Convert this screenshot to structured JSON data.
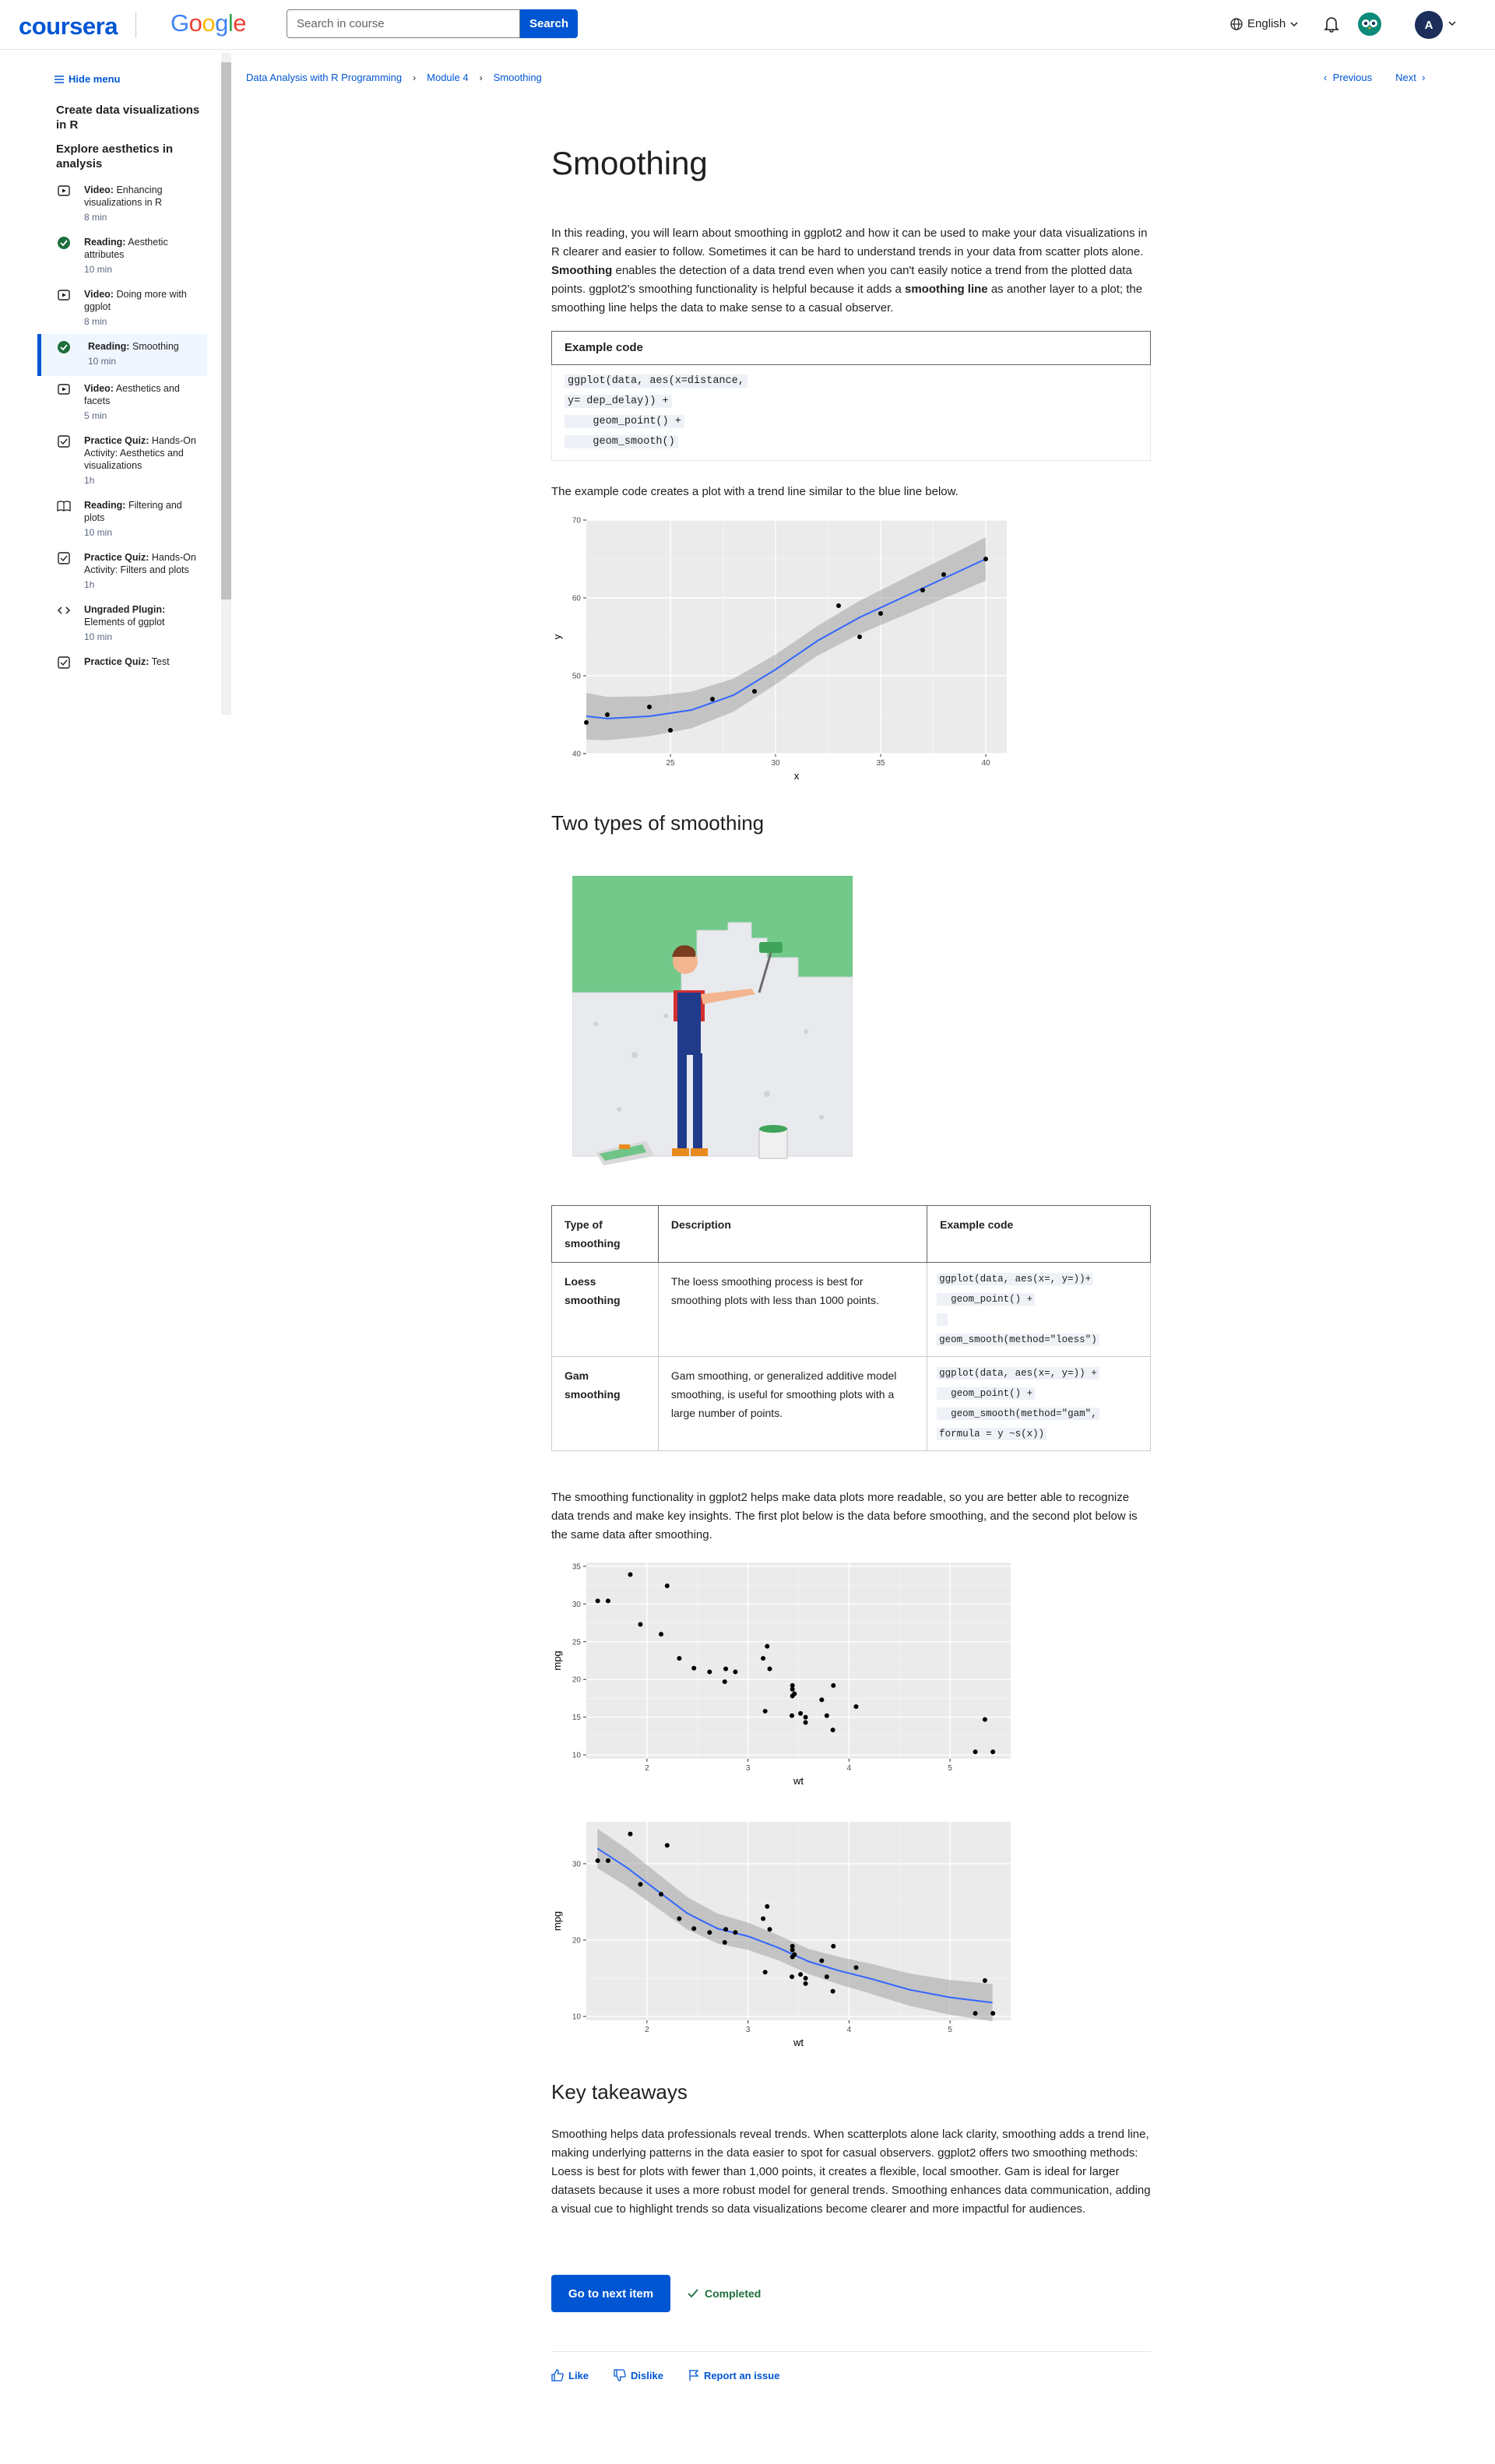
{
  "header": {
    "logo": "coursera",
    "partner_logo": "Google",
    "search_placeholder": "Search in course",
    "search_button": "Search",
    "language": "English",
    "avatar_initial": "A"
  },
  "sidebar": {
    "hide_menu": "Hide menu",
    "section_title": "Create data visualizations in R",
    "subsection_title": "Explore aesthetics in analysis",
    "items": [
      {
        "type": "Video:",
        "title": "Enhancing visualizations in R",
        "time": "8 min",
        "icon": "video-icon"
      },
      {
        "type": "Reading:",
        "title": "Aesthetic attributes",
        "time": "10 min",
        "icon": "completed-check-icon"
      },
      {
        "type": "Video:",
        "title": "Doing more with ggplot",
        "time": "8 min",
        "icon": "video-icon"
      },
      {
        "type": "Reading:",
        "title": "Smoothing",
        "time": "10 min",
        "icon": "completed-check-icon"
      },
      {
        "type": "Video:",
        "title": "Aesthetics and facets",
        "time": "5 min",
        "icon": "video-icon"
      },
      {
        "type": "Practice Quiz:",
        "title": "Hands-On Activity: Aesthetics and visualizations",
        "time": "1h",
        "icon": "quiz-icon"
      },
      {
        "type": "Reading:",
        "title": "Filtering and plots",
        "time": "10 min",
        "icon": "reading-icon"
      },
      {
        "type": "Practice Quiz:",
        "title": "Hands-On Activity: Filters and plots",
        "time": "1h",
        "icon": "quiz-icon"
      },
      {
        "type": "Ungraded Plugin:",
        "title": "Elements of ggplot",
        "time": "10 min",
        "icon": "code-icon"
      },
      {
        "type": "Practice Quiz:",
        "title": "Test",
        "time": "",
        "icon": "quiz-icon"
      }
    ]
  },
  "breadcrumb": [
    "Data Analysis with R Programming",
    "Module 4",
    "Smoothing"
  ],
  "nav": {
    "previous": "Previous",
    "next": "Next"
  },
  "main": {
    "title": "Smoothing",
    "intro_1": "In this reading, you will learn about smoothing in ggplot2 and how it can be used to make your data visualizations in R clearer and easier to follow. Sometimes it can be hard to understand trends in your data from scatter plots alone. ",
    "intro_bold_1": "Smoothing",
    "intro_2": " enables the detection of a data trend even when you can't easily notice a trend from the plotted data points. ggplot2's smoothing functionality is helpful because it adds a ",
    "intro_bold_2": "smoothing line",
    "intro_3": " as another layer to a plot; the smoothing line helps the data to make sense to a casual observer.",
    "example_code_header": "Example code",
    "example_code_lines": [
      "ggplot(data, aes(x=distance,",
      "y= dep_delay)) +",
      "    geom_point() +",
      "    geom_smooth()"
    ],
    "plot_intro": "The example code creates a plot with a trend line similar to the blue line below.",
    "h2_types": "Two types of smoothing",
    "table": {
      "headers": [
        "Type of smoothing",
        "Description",
        "Example code"
      ],
      "rows": [
        {
          "type": "Loess smoothing",
          "desc": "The loess smoothing process is best for smoothing plots with less than 1000 points.",
          "code": [
            "ggplot(data, aes(x=, y=))+",
            "  geom_point() +",
            " ",
            "geom_smooth(method=\"loess\")"
          ]
        },
        {
          "type": "Gam smoothing",
          "desc": "Gam smoothing, or generalized additive model smoothing, is useful for smoothing plots with a large number of points.",
          "code": [
            "ggplot(data, aes(x=, y=)) +",
            "  geom_point() +",
            "  geom_smooth(method=\"gam\",",
            "formula = y ~s(x))"
          ]
        }
      ]
    },
    "functionality_text": "The smoothing functionality in ggplot2 helps make data plots more readable, so you are better able to recognize data trends and make key insights. The first plot below is the data before smoothing, and the second plot below is the same data after smoothing.",
    "h2_takeaways": "Key takeaways",
    "takeaways_text": "Smoothing helps data professionals reveal trends. When scatterplots alone lack clarity, smoothing adds a trend line, making underlying patterns in the data easier to spot for casual observers. ggplot2 offers two smoothing methods: Loess is best for plots with fewer than 1,000 points, it creates a flexible, local smoother. Gam is ideal for larger datasets because it uses a more robust model for general trends. Smoothing enhances data communication, adding a visual cue to highlight trends so data visualizations become clearer and more impactful for audiences.",
    "next_button": "Go to next item",
    "completed": "Completed",
    "like": "Like",
    "dislike": "Dislike",
    "report": "Report an issue"
  },
  "colors": {
    "brand": "#0056d2",
    "completed": "#1e6e3b",
    "smooth_line": "#3366ff",
    "panel": "#ebebeb"
  },
  "chart_data": [
    {
      "type": "scatter",
      "xlabel": "x",
      "ylabel": "y",
      "xlim": [
        21,
        41
      ],
      "ylim": [
        40,
        70
      ],
      "xticks": [
        25,
        30,
        35,
        40
      ],
      "yticks": [
        40,
        50,
        60,
        70
      ],
      "points": [
        [
          21,
          44
        ],
        [
          22,
          45
        ],
        [
          24,
          46
        ],
        [
          25,
          43
        ],
        [
          27,
          47
        ],
        [
          29,
          48
        ],
        [
          33,
          59
        ],
        [
          34,
          55
        ],
        [
          35,
          58
        ],
        [
          37,
          61
        ],
        [
          38,
          63
        ],
        [
          40,
          65
        ]
      ],
      "smooth": [
        [
          21,
          44.8
        ],
        [
          22,
          44.5
        ],
        [
          24,
          44.8
        ],
        [
          26,
          45.6
        ],
        [
          28,
          47.5
        ],
        [
          30,
          50.8
        ],
        [
          32,
          54.5
        ],
        [
          34,
          57.5
        ],
        [
          36,
          60
        ],
        [
          38,
          62.5
        ],
        [
          40,
          65
        ]
      ],
      "grid": true
    },
    {
      "type": "scatter",
      "xlabel": "wt",
      "ylabel": "mpg",
      "xlim": [
        1.4,
        5.6
      ],
      "ylim": [
        9.5,
        35.5
      ],
      "xticks": [
        2,
        3,
        4,
        5
      ],
      "yticks": [
        10,
        15,
        20,
        25,
        30,
        35
      ],
      "points": [
        [
          2.62,
          21
        ],
        [
          2.875,
          21
        ],
        [
          2.32,
          22.8
        ],
        [
          3.215,
          21.4
        ],
        [
          3.44,
          18.7
        ],
        [
          3.46,
          18.1
        ],
        [
          3.57,
          14.3
        ],
        [
          3.19,
          24.4
        ],
        [
          3.15,
          22.8
        ],
        [
          3.44,
          19.2
        ],
        [
          3.44,
          17.8
        ],
        [
          4.07,
          16.4
        ],
        [
          3.73,
          17.3
        ],
        [
          3.78,
          15.2
        ],
        [
          5.25,
          10.4
        ],
        [
          5.424,
          10.4
        ],
        [
          5.345,
          14.7
        ],
        [
          2.2,
          32.4
        ],
        [
          1.615,
          30.4
        ],
        [
          1.835,
          33.9
        ],
        [
          2.465,
          21.5
        ],
        [
          3.52,
          15.5
        ],
        [
          3.435,
          15.2
        ],
        [
          3.84,
          13.3
        ],
        [
          3.845,
          19.2
        ],
        [
          1.935,
          27.3
        ],
        [
          2.14,
          26
        ],
        [
          1.513,
          30.4
        ],
        [
          3.17,
          15.8
        ],
        [
          2.77,
          19.7
        ],
        [
          3.57,
          15
        ],
        [
          2.78,
          21.4
        ]
      ],
      "grid": true
    },
    {
      "type": "scatter",
      "xlabel": "wt",
      "ylabel": "mpg",
      "xlim": [
        1.4,
        5.6
      ],
      "ylim": [
        9.5,
        35.5
      ],
      "xticks": [
        2,
        3,
        4,
        5
      ],
      "yticks": [
        10,
        20,
        30
      ],
      "points": [
        [
          2.62,
          21
        ],
        [
          2.875,
          21
        ],
        [
          2.32,
          22.8
        ],
        [
          3.215,
          21.4
        ],
        [
          3.44,
          18.7
        ],
        [
          3.46,
          18.1
        ],
        [
          3.57,
          14.3
        ],
        [
          3.19,
          24.4
        ],
        [
          3.15,
          22.8
        ],
        [
          3.44,
          19.2
        ],
        [
          3.44,
          17.8
        ],
        [
          4.07,
          16.4
        ],
        [
          3.73,
          17.3
        ],
        [
          3.78,
          15.2
        ],
        [
          5.25,
          10.4
        ],
        [
          5.424,
          10.4
        ],
        [
          5.345,
          14.7
        ],
        [
          2.2,
          32.4
        ],
        [
          1.615,
          30.4
        ],
        [
          1.835,
          33.9
        ],
        [
          2.465,
          21.5
        ],
        [
          3.52,
          15.5
        ],
        [
          3.435,
          15.2
        ],
        [
          3.84,
          13.3
        ],
        [
          3.845,
          19.2
        ],
        [
          1.935,
          27.3
        ],
        [
          2.14,
          26
        ],
        [
          1.513,
          30.4
        ],
        [
          3.17,
          15.8
        ],
        [
          2.77,
          19.7
        ],
        [
          3.57,
          15
        ],
        [
          2.78,
          21.4
        ]
      ],
      "smooth": [
        [
          1.51,
          32
        ],
        [
          1.8,
          29.5
        ],
        [
          2.1,
          26.5
        ],
        [
          2.4,
          23.5
        ],
        [
          2.7,
          21.5
        ],
        [
          3.0,
          20.5
        ],
        [
          3.3,
          19
        ],
        [
          3.6,
          17.2
        ],
        [
          3.9,
          16
        ],
        [
          4.2,
          15
        ],
        [
          4.6,
          13.5
        ],
        [
          5.0,
          12.5
        ],
        [
          5.42,
          11.8
        ]
      ],
      "grid": true
    }
  ]
}
